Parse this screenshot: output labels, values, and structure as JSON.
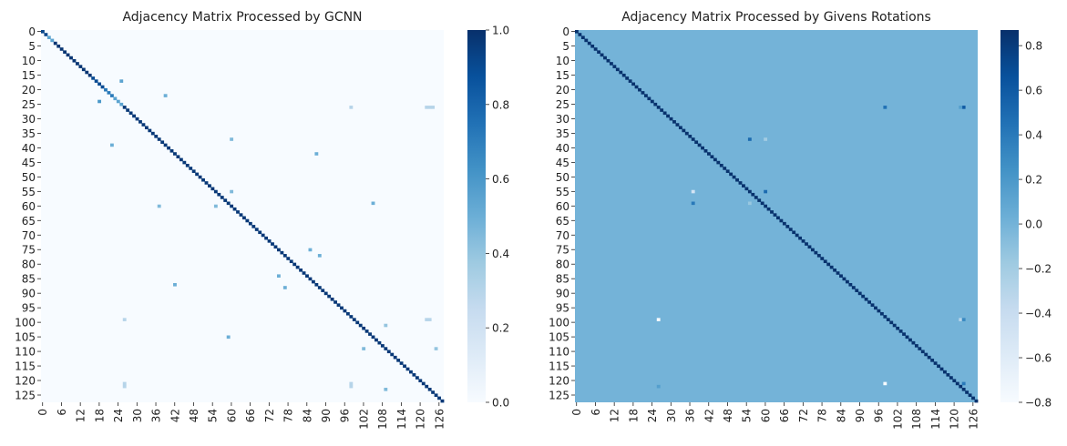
{
  "chart_data": [
    {
      "type": "heatmap",
      "title": "Adjacency Matrix Processed by GCNN",
      "xlabel": "",
      "ylabel": "",
      "size": 128,
      "colormap": "Blues",
      "colorbar": {
        "min": 0.0,
        "max": 1.0,
        "ticks": [
          "0.0",
          "0.2",
          "0.4",
          "0.6",
          "0.8",
          "1.0"
        ]
      },
      "x_tick_labels": [
        "0",
        "6",
        "12",
        "18",
        "24",
        "30",
        "36",
        "42",
        "48",
        "54",
        "60",
        "66",
        "72",
        "78",
        "84",
        "90",
        "96",
        "102",
        "108",
        "114",
        "120",
        "126"
      ],
      "y_tick_labels": [
        "0",
        "5",
        "10",
        "15",
        "20",
        "25",
        "30",
        "35",
        "40",
        "45",
        "50",
        "55",
        "60",
        "65",
        "70",
        "75",
        "80",
        "85",
        "90",
        "95",
        "100",
        "105",
        "110",
        "115",
        "120",
        "125"
      ],
      "background": 0.0,
      "diagonal": [
        {
          "from": 0,
          "to": 1,
          "value": 0.92
        },
        {
          "from": 2,
          "to": 3,
          "value": 0.55
        },
        {
          "from": 4,
          "to": 15,
          "value": 0.98
        },
        {
          "from": 16,
          "to": 19,
          "value": 0.9
        },
        {
          "from": 20,
          "to": 22,
          "value": 0.72
        },
        {
          "from": 23,
          "to": 25,
          "value": 0.55
        },
        {
          "from": 26,
          "to": 127,
          "value": 0.97
        }
      ],
      "cells": [
        {
          "row": 17,
          "col": 25,
          "value": 0.55
        },
        {
          "row": 22,
          "col": 39,
          "value": 0.5
        },
        {
          "row": 24,
          "col": 18,
          "value": 0.6
        },
        {
          "row": 26,
          "col": 98,
          "value": 0.3
        },
        {
          "row": 26,
          "col": 122,
          "value": 0.3
        },
        {
          "row": 26,
          "col": 123,
          "value": 0.3
        },
        {
          "row": 26,
          "col": 124,
          "value": 0.3
        },
        {
          "row": 37,
          "col": 60,
          "value": 0.45
        },
        {
          "row": 39,
          "col": 22,
          "value": 0.5
        },
        {
          "row": 42,
          "col": 87,
          "value": 0.5
        },
        {
          "row": 55,
          "col": 60,
          "value": 0.45
        },
        {
          "row": 59,
          "col": 105,
          "value": 0.5
        },
        {
          "row": 60,
          "col": 37,
          "value": 0.45
        },
        {
          "row": 60,
          "col": 55,
          "value": 0.45
        },
        {
          "row": 75,
          "col": 85,
          "value": 0.5
        },
        {
          "row": 77,
          "col": 88,
          "value": 0.5
        },
        {
          "row": 84,
          "col": 75,
          "value": 0.5
        },
        {
          "row": 87,
          "col": 42,
          "value": 0.5
        },
        {
          "row": 88,
          "col": 77,
          "value": 0.5
        },
        {
          "row": 99,
          "col": 26,
          "value": 0.3
        },
        {
          "row": 99,
          "col": 122,
          "value": 0.3
        },
        {
          "row": 99,
          "col": 123,
          "value": 0.3
        },
        {
          "row": 101,
          "col": 109,
          "value": 0.4
        },
        {
          "row": 105,
          "col": 59,
          "value": 0.5
        },
        {
          "row": 109,
          "col": 102,
          "value": 0.45
        },
        {
          "row": 109,
          "col": 125,
          "value": 0.4
        },
        {
          "row": 121,
          "col": 26,
          "value": 0.3
        },
        {
          "row": 122,
          "col": 26,
          "value": 0.3
        },
        {
          "row": 121,
          "col": 98,
          "value": 0.3
        },
        {
          "row": 122,
          "col": 98,
          "value": 0.3
        },
        {
          "row": 123,
          "col": 109,
          "value": 0.45
        }
      ]
    },
    {
      "type": "heatmap",
      "title": "Adjacency Matrix Processed by Givens Rotations",
      "xlabel": "",
      "ylabel": "",
      "size": 128,
      "colormap": "Blues",
      "colorbar": {
        "min": -0.8,
        "max": 0.87,
        "ticks": [
          "−0.8",
          "−0.6",
          "−0.4",
          "−0.2",
          "0.0",
          "0.2",
          "0.4",
          "0.6",
          "0.8"
        ]
      },
      "x_tick_labels": [
        "0",
        "6",
        "12",
        "18",
        "24",
        "30",
        "36",
        "42",
        "48",
        "54",
        "60",
        "66",
        "72",
        "78",
        "84",
        "90",
        "96",
        "102",
        "108",
        "114",
        "120",
        "126"
      ],
      "y_tick_labels": [
        "0",
        "5",
        "10",
        "15",
        "20",
        "25",
        "30",
        "35",
        "40",
        "45",
        "50",
        "55",
        "60",
        "65",
        "70",
        "75",
        "80",
        "85",
        "90",
        "95",
        "100",
        "105",
        "110",
        "115",
        "120",
        "125"
      ],
      "background": 0.0,
      "diagonal": [
        {
          "from": 0,
          "to": 127,
          "value": 0.86
        }
      ],
      "cells": [
        {
          "row": 26,
          "col": 98,
          "value": 0.45
        },
        {
          "row": 26,
          "col": 123,
          "value": 0.6
        },
        {
          "row": 26,
          "col": 122,
          "value": 0.15
        },
        {
          "row": 37,
          "col": 55,
          "value": 0.5
        },
        {
          "row": 37,
          "col": 60,
          "value": -0.2
        },
        {
          "row": 55,
          "col": 37,
          "value": -0.5
        },
        {
          "row": 55,
          "col": 60,
          "value": 0.5
        },
        {
          "row": 59,
          "col": 37,
          "value": 0.4
        },
        {
          "row": 59,
          "col": 55,
          "value": -0.15
        },
        {
          "row": 99,
          "col": 26,
          "value": -0.8
        },
        {
          "row": 99,
          "col": 122,
          "value": -0.3
        },
        {
          "row": 99,
          "col": 123,
          "value": 0.3
        },
        {
          "row": 121,
          "col": 98,
          "value": -0.8
        },
        {
          "row": 121,
          "col": 123,
          "value": 0.4
        },
        {
          "row": 122,
          "col": 26,
          "value": 0.15
        }
      ]
    }
  ]
}
